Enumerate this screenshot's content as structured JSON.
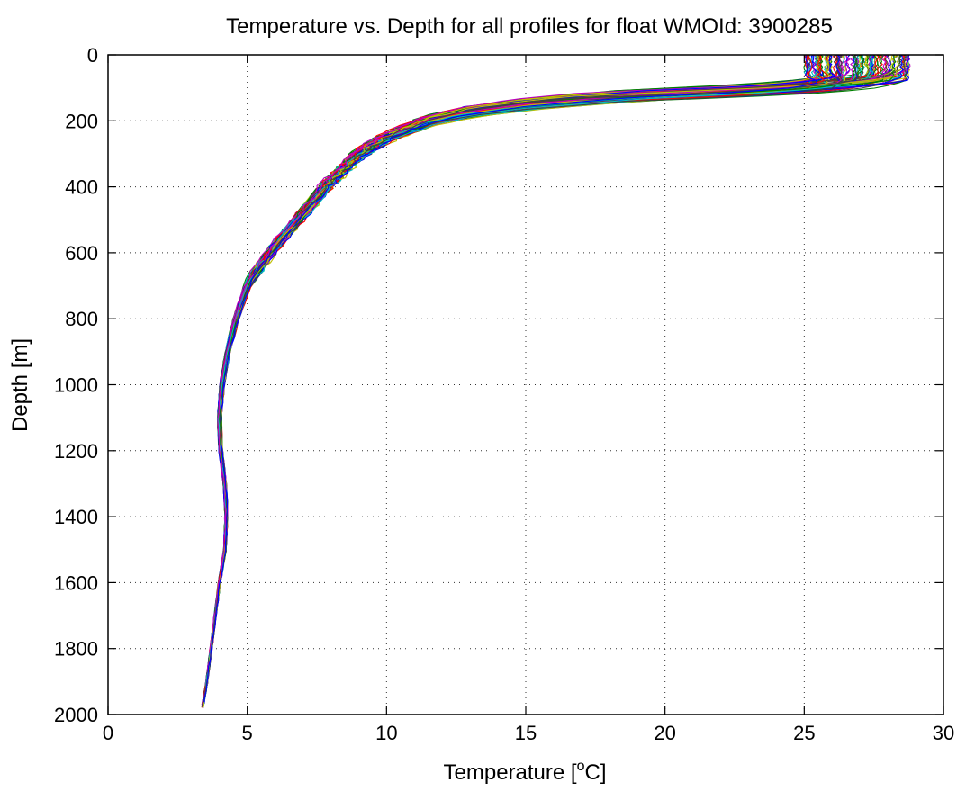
{
  "chart_data": {
    "type": "line",
    "title": "Temperature vs. Depth for all profiles for float WMOId: 3900285",
    "xlabel": "Temperature [",
    "xlabel_sup": "o",
    "xlabel_unit": "C]",
    "ylabel": "Depth [m]",
    "xlim": [
      0,
      30
    ],
    "ylim": [
      0,
      2000
    ],
    "y_reversed": true,
    "grid": true,
    "x_ticks": [
      0,
      5,
      10,
      15,
      20,
      25,
      30
    ],
    "y_ticks": [
      0,
      200,
      400,
      600,
      800,
      1000,
      1200,
      1400,
      1600,
      1800,
      2000
    ],
    "x_tick_labels": [
      "0",
      "5",
      "10",
      "15",
      "20",
      "25",
      "30"
    ],
    "y_tick_labels": [
      "0",
      "200",
      "400",
      "600",
      "800",
      "1000",
      "1200",
      "1400",
      "1600",
      "1800",
      "2000"
    ],
    "series_colors": [
      "#0000ff",
      "#008000",
      "#ff0000",
      "#00bfbf",
      "#bf00bf",
      "#bfbf00",
      "#404040"
    ],
    "representative_profile": {
      "depth": [
        0,
        50,
        75,
        100,
        125,
        150,
        175,
        200,
        250,
        300,
        400,
        500,
        600,
        700,
        800,
        900,
        1000,
        1100,
        1200,
        1300,
        1400,
        1500,
        1600,
        1700,
        1800,
        1900,
        1975
      ],
      "temperature": [
        26.8,
        26.8,
        26.5,
        23.0,
        18.5,
        15.0,
        12.8,
        11.5,
        10.0,
        9.0,
        7.8,
        6.8,
        5.8,
        5.0,
        4.6,
        4.3,
        4.1,
        4.0,
        4.05,
        4.2,
        4.25,
        4.2,
        4.0,
        3.85,
        3.7,
        3.55,
        3.4
      ]
    },
    "profile_count": 120
  }
}
